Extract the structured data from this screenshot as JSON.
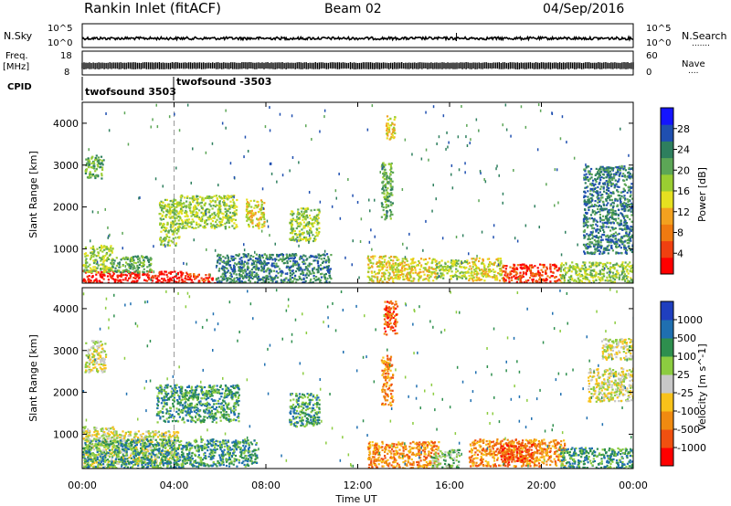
{
  "header": {
    "title": "Rankin Inlet (fitACF)",
    "beam": "Beam 02",
    "date": "04/Sep/2016"
  },
  "nsky_panel": {
    "left_label": "N.Sky",
    "right_label": "N.Search",
    "right_marker": ".......",
    "left_ticks": [
      "10^5",
      "10^0"
    ],
    "right_ticks": [
      "10^5",
      "10^0"
    ]
  },
  "freq_panel": {
    "left_label_1": "Freq.",
    "left_label_2": "[MHz]",
    "right_label": "Nave",
    "right_marker": "....",
    "left_ticks": [
      "18",
      "8"
    ],
    "right_ticks": [
      "60",
      "0"
    ]
  },
  "cpid_panel": {
    "label": "CPID",
    "segments": [
      {
        "name": "twofsound 3503",
        "start_hour": 0.0
      },
      {
        "name": "twofsound -3503",
        "start_hour": 4.0
      }
    ]
  },
  "chart_data": [
    {
      "type": "heatmap",
      "name": "power",
      "ylabel": "Slant Range [km]",
      "xlabel": "",
      "x_range_hours": [
        0,
        24
      ],
      "ylim": [
        180,
        4500
      ],
      "y_ticks": [
        "1000",
        "2000",
        "3000",
        "4000"
      ],
      "colorbar": {
        "label": "Power [dB]",
        "ticks": [
          "4",
          "8",
          "12",
          "16",
          "20",
          "24",
          "28"
        ],
        "min": 0,
        "max": 32,
        "colors": [
          "#1414ff",
          "#1f4fb0",
          "#2e7f5e",
          "#5ca656",
          "#9acd32",
          "#e5e020",
          "#f3a11f",
          "#f07a10",
          "#f04010",
          "#ff0000"
        ]
      },
      "blobs": [
        {
          "t0": 0.0,
          "t1": 2.0,
          "r0": 180,
          "r1": 500,
          "level": 9
        },
        {
          "t0": 2.0,
          "t1": 4.6,
          "r0": 180,
          "r1": 480,
          "level": 9
        },
        {
          "t0": 4.6,
          "t1": 5.8,
          "r0": 180,
          "r1": 420,
          "level": 8
        },
        {
          "t0": 0.0,
          "t1": 1.3,
          "r0": 450,
          "r1": 1100,
          "level": 4
        },
        {
          "t0": 1.3,
          "t1": 3.0,
          "r0": 450,
          "r1": 850,
          "level": 3
        },
        {
          "t0": 0.1,
          "t1": 0.9,
          "r0": 2700,
          "r1": 3250,
          "level": 3
        },
        {
          "t0": 3.3,
          "t1": 4.2,
          "r0": 1100,
          "r1": 2200,
          "level": 4
        },
        {
          "t0": 4.2,
          "t1": 6.7,
          "r0": 1500,
          "r1": 2300,
          "level": 4
        },
        {
          "t0": 7.1,
          "t1": 7.9,
          "r0": 1500,
          "r1": 2200,
          "level": 5
        },
        {
          "t0": 9.0,
          "t1": 10.3,
          "r0": 1200,
          "r1": 2000,
          "level": 4
        },
        {
          "t0": 5.8,
          "t1": 10.8,
          "r0": 180,
          "r1": 900,
          "level": 2
        },
        {
          "t0": 12.4,
          "t1": 13.7,
          "r0": 180,
          "r1": 850,
          "level": 5
        },
        {
          "t0": 13.7,
          "t1": 15.4,
          "r0": 250,
          "r1": 800,
          "level": 5
        },
        {
          "t0": 15.4,
          "t1": 16.8,
          "r0": 300,
          "r1": 750,
          "level": 4
        },
        {
          "t0": 16.8,
          "t1": 18.3,
          "r0": 250,
          "r1": 800,
          "level": 5
        },
        {
          "t0": 18.3,
          "t1": 20.8,
          "r0": 180,
          "r1": 650,
          "level": 8
        },
        {
          "t0": 20.8,
          "t1": 24.0,
          "r0": 180,
          "r1": 700,
          "level": 4
        },
        {
          "t0": 13.2,
          "t1": 13.6,
          "r0": 3600,
          "r1": 4200,
          "level": 5
        },
        {
          "t0": 21.8,
          "t1": 24.0,
          "r0": 900,
          "r1": 3000,
          "level": 2
        },
        {
          "t0": 13.0,
          "t1": 13.5,
          "r0": 1700,
          "r1": 3100,
          "level": 3
        }
      ]
    },
    {
      "type": "heatmap",
      "name": "velocity",
      "ylabel": "Slant Range [km]",
      "xlabel": "Time UT",
      "x_range_hours": [
        0,
        24
      ],
      "x_ticks": [
        "00:00",
        "04:00",
        "08:00",
        "12:00",
        "16:00",
        "20:00",
        "00:00"
      ],
      "ylim": [
        180,
        4500
      ],
      "y_ticks": [
        "1000",
        "2000",
        "3000",
        "4000"
      ],
      "colorbar": {
        "label": "Velocity [m s^-1]",
        "ticks": [
          "1000",
          "500",
          "100",
          "25",
          "-25",
          "-100",
          "-500",
          "-1000"
        ],
        "colors": [
          "#1f3fbf",
          "#1f6fb0",
          "#2e8f4e",
          "#8ccc40",
          "#c8c8c8",
          "#f8c21a",
          "#f08a10",
          "#f05010",
          "#ff0000"
        ]
      },
      "blobs": [
        {
          "t0": 0.0,
          "t1": 1.4,
          "r0": 180,
          "r1": 1200,
          "level": 4
        },
        {
          "t0": 1.4,
          "t1": 4.2,
          "r0": 300,
          "r1": 1100,
          "level": 4
        },
        {
          "t0": 0.0,
          "t1": 4.6,
          "r0": 180,
          "r1": 900,
          "level": 2
        },
        {
          "t0": 4.6,
          "t1": 7.6,
          "r0": 250,
          "r1": 900,
          "level": 2
        },
        {
          "t0": 0.1,
          "t1": 1.0,
          "r0": 2500,
          "r1": 3250,
          "level": 4
        },
        {
          "t0": 3.2,
          "t1": 6.8,
          "r0": 1300,
          "r1": 2200,
          "level": 2
        },
        {
          "t0": 9.0,
          "t1": 10.3,
          "r0": 1200,
          "r1": 2000,
          "level": 2
        },
        {
          "t0": 12.4,
          "t1": 15.5,
          "r0": 180,
          "r1": 850,
          "level": 6
        },
        {
          "t0": 16.8,
          "t1": 21.0,
          "r0": 250,
          "r1": 900,
          "level": 6
        },
        {
          "t0": 18.2,
          "t1": 19.8,
          "r0": 350,
          "r1": 800,
          "level": 7
        },
        {
          "t0": 20.8,
          "t1": 24.0,
          "r0": 180,
          "r1": 700,
          "level": 2
        },
        {
          "t0": 13.1,
          "t1": 13.7,
          "r0": 3400,
          "r1": 4200,
          "level": 7
        },
        {
          "t0": 13.0,
          "t1": 13.5,
          "r0": 1700,
          "r1": 2900,
          "level": 6
        },
        {
          "t0": 22.0,
          "t1": 24.0,
          "r0": 1800,
          "r1": 2600,
          "level": 4
        },
        {
          "t0": 22.6,
          "t1": 24.0,
          "r0": 2800,
          "r1": 3300,
          "level": 4
        },
        {
          "t0": 15.2,
          "t1": 16.4,
          "r0": 180,
          "r1": 650,
          "level": 3
        }
      ]
    }
  ]
}
